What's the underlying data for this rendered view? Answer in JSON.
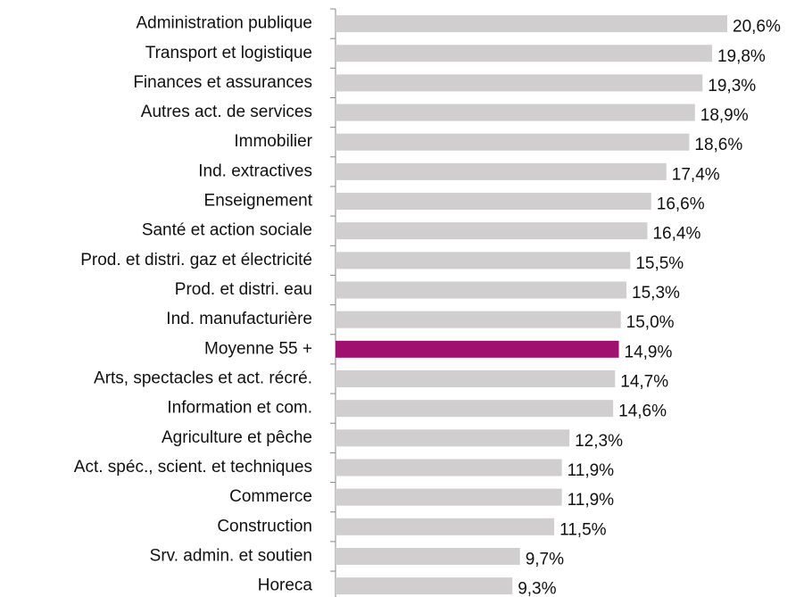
{
  "chart_data": {
    "type": "barh",
    "categories": [
      "Administration publique",
      "Transport et logistique",
      "Finances et assurances",
      "Autres act. de services",
      "Immobilier",
      "Ind. extractives",
      "Enseignement",
      "Santé et action sociale",
      "Prod. et distri. gaz et électricité",
      "Prod. et distri. eau",
      "Ind. manufacturière",
      "Moyenne 55 +",
      "Arts, spectacles et act. récré.",
      "Information et com.",
      "Agriculture et pêche",
      "Act. spéc., scient. et techniques",
      "Commerce",
      "Construction",
      "Srv. admin. et soutien",
      "Horeca"
    ],
    "values": [
      20.6,
      19.8,
      19.3,
      18.9,
      18.6,
      17.4,
      16.6,
      16.4,
      15.5,
      15.3,
      15.0,
      14.9,
      14.7,
      14.6,
      12.3,
      11.9,
      11.9,
      11.5,
      9.7,
      9.3
    ],
    "value_labels": [
      "20,6%",
      "19,8%",
      "19,3%",
      "18,9%",
      "18,6%",
      "17,4%",
      "16,6%",
      "16,4%",
      "15,5%",
      "15,3%",
      "15,0%",
      "14,9%",
      "14,7%",
      "14,6%",
      "12,3%",
      "11,9%",
      "11,9%",
      "11,5%",
      "9,7%",
      "9,3%"
    ],
    "colors": [
      "#d0cece",
      "#d0cece",
      "#d0cece",
      "#d0cece",
      "#d0cece",
      "#d0cece",
      "#d0cece",
      "#d0cece",
      "#d0cece",
      "#d0cece",
      "#d0cece",
      "#a0106e",
      "#d0cece",
      "#d0cece",
      "#d0cece",
      "#d0cece",
      "#d0cece",
      "#d0cece",
      "#d0cece",
      "#d0cece"
    ]
  }
}
